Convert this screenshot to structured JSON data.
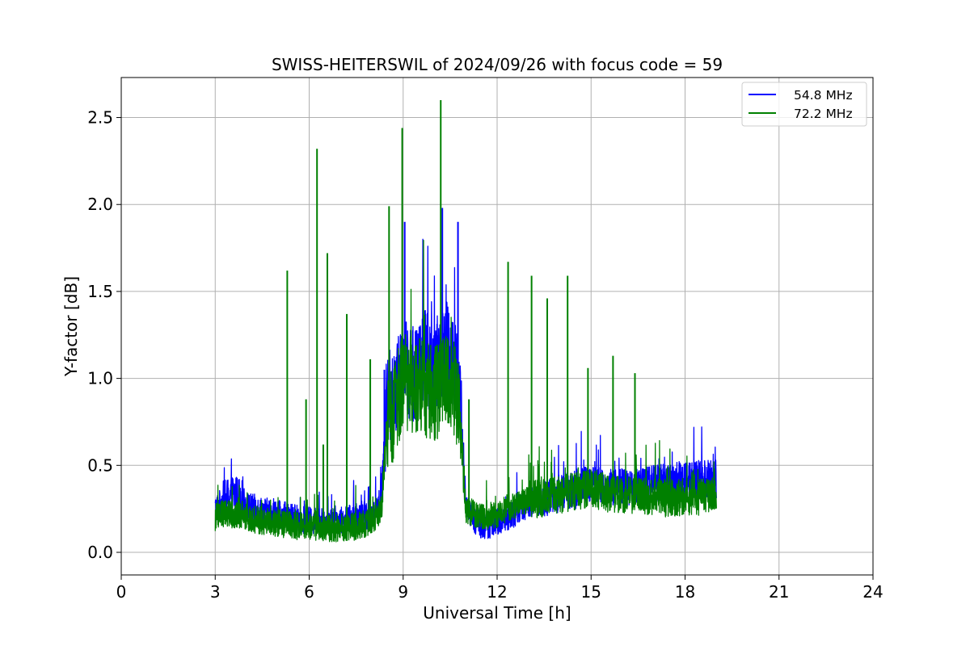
{
  "chart_data": {
    "type": "line",
    "title": "SWISS-HEITERSWIL of 2024/09/26 with focus code = 59",
    "xlabel": "Universal Time [h]",
    "ylabel": "Y-factor [dB]",
    "xlim": [
      0,
      24
    ],
    "ylim": [
      -0.13,
      2.73
    ],
    "xticks": [
      0,
      3,
      6,
      9,
      12,
      15,
      18,
      21,
      24
    ],
    "xtick_labels": [
      "0",
      "3",
      "6",
      "9",
      "12",
      "15",
      "18",
      "21",
      "24"
    ],
    "yticks": [
      0.0,
      0.5,
      1.0,
      1.5,
      2.0,
      2.5
    ],
    "ytick_labels": [
      "0.0",
      "0.5",
      "1.0",
      "1.5",
      "2.0",
      "2.5"
    ],
    "grid": true,
    "legend_position": "top-right",
    "series": [
      {
        "name": "54.8 MHz",
        "color": "#0000ff",
        "x": [
          3.0,
          3.25,
          3.5,
          3.75,
          4.0,
          4.5,
          5.0,
          5.5,
          6.0,
          6.5,
          7.0,
          7.5,
          8.0,
          8.3,
          8.5,
          8.7,
          9.0,
          9.3,
          9.6,
          10.0,
          10.3,
          10.6,
          10.8,
          11.0,
          11.3,
          11.6,
          12.0,
          12.5,
          13.0,
          13.5,
          14.0,
          14.5,
          15.0,
          15.5,
          16.0,
          16.5,
          17.0,
          17.5,
          18.0,
          18.5,
          19.0
        ],
        "values": [
          0.25,
          0.3,
          0.33,
          0.33,
          0.27,
          0.24,
          0.22,
          0.2,
          0.18,
          0.18,
          0.18,
          0.2,
          0.22,
          0.3,
          0.95,
          0.85,
          1.1,
          1.0,
          1.15,
          1.05,
          1.2,
          1.1,
          0.95,
          0.25,
          0.18,
          0.15,
          0.17,
          0.22,
          0.28,
          0.3,
          0.34,
          0.36,
          0.4,
          0.38,
          0.37,
          0.38,
          0.4,
          0.4,
          0.42,
          0.42,
          0.42
        ]
      },
      {
        "name": "72.2 MHz",
        "color": "#008000",
        "x": [
          3.0,
          3.25,
          3.5,
          3.75,
          4.0,
          4.5,
          5.0,
          5.5,
          6.0,
          6.5,
          7.0,
          7.5,
          8.0,
          8.3,
          8.5,
          8.7,
          9.0,
          9.3,
          9.6,
          10.0,
          10.3,
          10.6,
          10.8,
          11.0,
          11.3,
          11.6,
          12.0,
          12.5,
          13.0,
          13.5,
          14.0,
          14.5,
          15.0,
          15.5,
          16.0,
          16.5,
          17.0,
          17.5,
          18.0,
          18.5,
          19.0
        ],
        "values": [
          0.2,
          0.22,
          0.22,
          0.22,
          0.2,
          0.18,
          0.17,
          0.15,
          0.15,
          0.14,
          0.14,
          0.15,
          0.18,
          0.25,
          0.75,
          0.8,
          1.0,
          0.95,
          0.95,
          0.9,
          1.0,
          0.95,
          0.8,
          0.25,
          0.22,
          0.2,
          0.22,
          0.27,
          0.3,
          0.31,
          0.33,
          0.35,
          0.37,
          0.34,
          0.33,
          0.33,
          0.32,
          0.31,
          0.32,
          0.32,
          0.32
        ]
      }
    ],
    "spikes": {
      "72.2 MHz": [
        [
          5.3,
          1.62
        ],
        [
          5.9,
          0.88
        ],
        [
          6.25,
          2.32
        ],
        [
          6.45,
          0.62
        ],
        [
          6.58,
          1.72
        ],
        [
          7.2,
          1.37
        ],
        [
          7.95,
          1.11
        ],
        [
          8.55,
          1.99
        ],
        [
          8.97,
          2.44
        ],
        [
          10.2,
          2.6
        ],
        [
          11.1,
          0.88
        ],
        [
          12.35,
          1.67
        ],
        [
          13.1,
          1.59
        ],
        [
          13.6,
          1.46
        ],
        [
          14.25,
          1.59
        ],
        [
          14.9,
          1.06
        ],
        [
          15.7,
          1.13
        ],
        [
          16.4,
          1.03
        ]
      ],
      "54.8 MHz": [
        [
          8.4,
          1.05
        ],
        [
          9.05,
          1.9
        ],
        [
          10.25,
          1.98
        ],
        [
          10.75,
          1.9
        ]
      ]
    }
  }
}
